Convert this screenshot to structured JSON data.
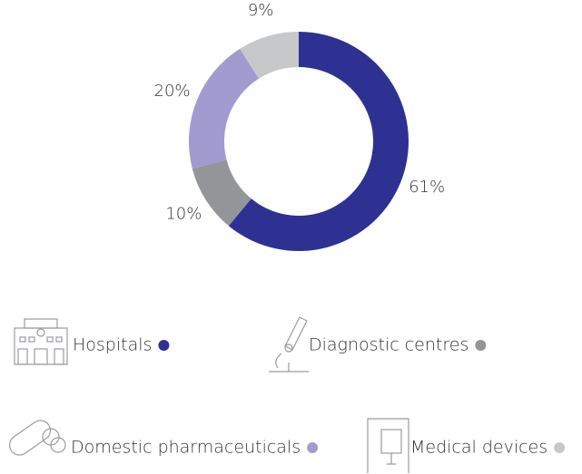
{
  "chart_data": {
    "type": "donut",
    "categories": [
      "Hospitals",
      "Diagnostic centres",
      "Domestic pharmaceuticals",
      "Medical devices"
    ],
    "values": [
      61,
      10,
      20,
      9
    ],
    "value_labels": [
      "61%",
      "10%",
      "20%",
      "9%"
    ],
    "colors": [
      "#2e3192",
      "#939598",
      "#a29bd0",
      "#c7c8ca"
    ]
  }
}
